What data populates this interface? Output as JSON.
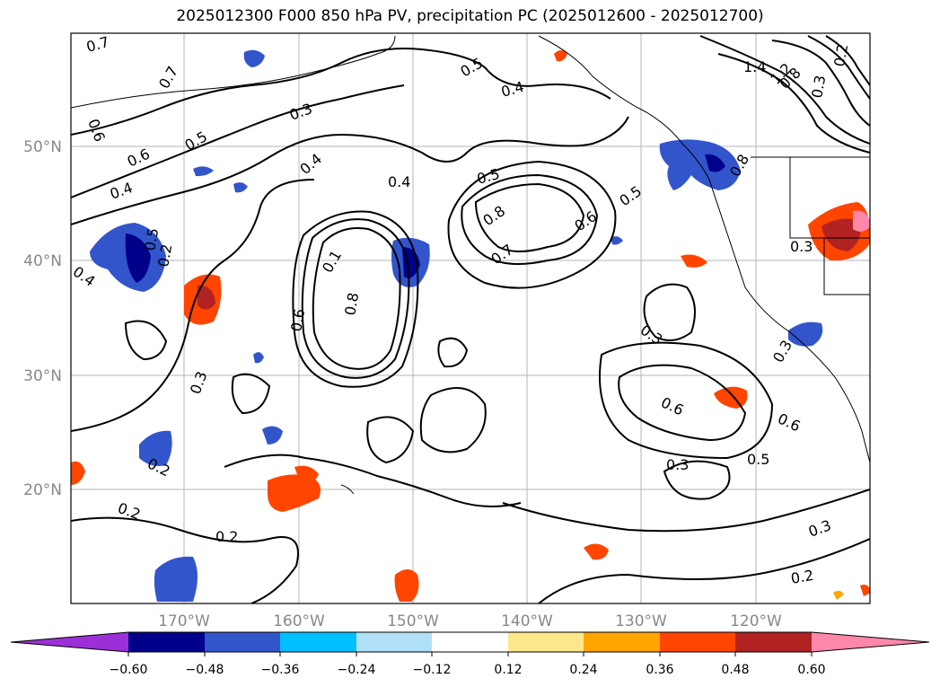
{
  "title": "2025012300 F000 850 hPa PV, precipitation PC (2025012600 - 2025012700)",
  "map": {
    "lat_labels": [
      "50°N",
      "40°N",
      "30°N",
      "20°N"
    ],
    "lon_labels": [
      "170°W",
      "160°W",
      "150°W",
      "140°W",
      "130°W",
      "120°W"
    ],
    "contour_labels": [
      "0.7",
      "0.7",
      "0.6",
      "0.6",
      "0.5",
      "0.4",
      "0.4",
      "0.3",
      "0.4",
      "0.4",
      "0.5",
      "0.5",
      "0.4",
      "0.5",
      "0.8",
      "0.7",
      "0.6",
      "0.5",
      "0.1",
      "0.8",
      "0.6",
      "0.2",
      "0.3",
      "0.2",
      "0.2",
      "0.2",
      "0.3",
      "0.6",
      "0.6",
      "0.3",
      "0.5",
      "0.3",
      "0.2",
      "0.3",
      "1.4",
      "1.2",
      "0.8",
      "0.3",
      "0.2",
      "0.8",
      "0.3"
    ]
  },
  "colorbar": {
    "colors": [
      "#9b30d9",
      "#00008b",
      "#3355cc",
      "#00bfff",
      "#b0e0f8",
      "#ffffff",
      "#fce88a",
      "#ffa500",
      "#ff4500",
      "#b22222",
      "#ff88aa"
    ],
    "tick_labels": [
      "−0.60",
      "−0.48",
      "−0.36",
      "−0.24",
      "−0.12",
      "0.12",
      "0.24",
      "0.36",
      "0.48",
      "0.60"
    ]
  }
}
